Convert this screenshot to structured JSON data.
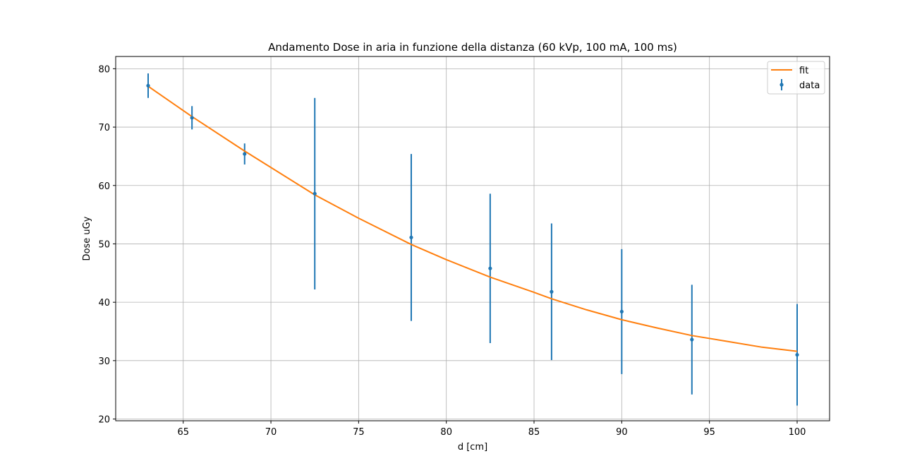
{
  "chart_data": {
    "type": "scatter",
    "title": "Andamento Dose in aria in funzione della distanza (60 kVp, 100 mA, 100 ms)",
    "xlabel": "d [cm]",
    "ylabel": "Dose uGy",
    "xlim": [
      61.15,
      101.85
    ],
    "ylim": [
      19.7,
      82.1
    ],
    "xticks": [
      65,
      70,
      75,
      80,
      85,
      90,
      95,
      100
    ],
    "yticks": [
      20,
      30,
      40,
      50,
      60,
      70,
      80
    ],
    "grid": true,
    "legend_position": "top-right",
    "series": [
      {
        "name": "fit",
        "kind": "line",
        "color": "#ff7f0e",
        "x": [
          63.0,
          65.5,
          68.5,
          72.5,
          75.0,
          78.0,
          80.0,
          82.5,
          85.0,
          86.0,
          88.0,
          90.0,
          92.0,
          94.0,
          96.0,
          98.0,
          100.0
        ],
        "y": [
          77.0,
          71.8,
          65.9,
          58.4,
          54.4,
          49.9,
          47.3,
          44.3,
          41.7,
          40.6,
          38.7,
          37.0,
          35.6,
          34.3,
          33.3,
          32.3,
          31.6
        ]
      },
      {
        "name": "data",
        "kind": "errorbar",
        "color": "#1f77b4",
        "x": [
          63.0,
          65.5,
          68.5,
          72.5,
          78.0,
          82.5,
          86.0,
          90.0,
          94.0,
          100.0
        ],
        "y": [
          77.1,
          71.6,
          65.4,
          58.6,
          51.1,
          45.8,
          41.8,
          38.4,
          33.6,
          31.0
        ],
        "yerr": [
          2.1,
          2.0,
          1.8,
          16.4,
          14.3,
          12.8,
          11.7,
          10.7,
          9.4,
          8.7
        ]
      }
    ]
  }
}
